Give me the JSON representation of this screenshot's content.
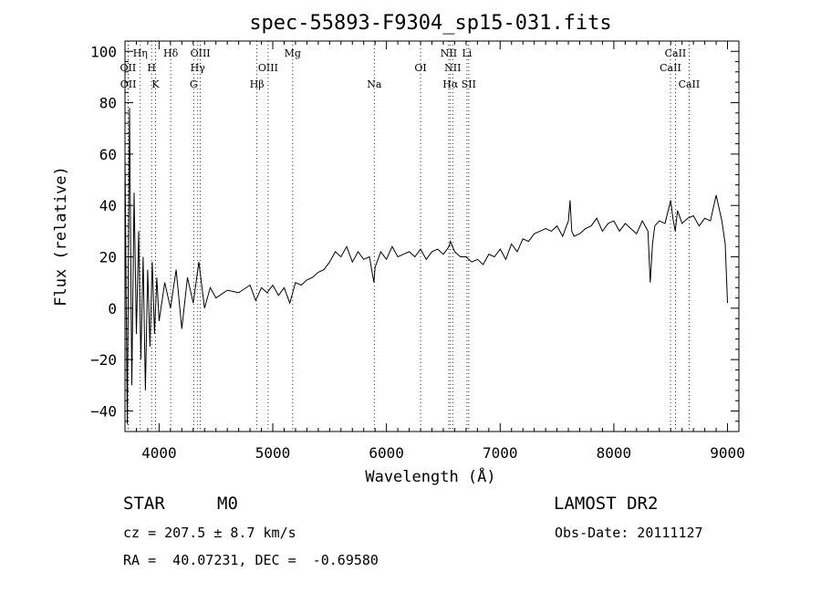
{
  "chart_data": {
    "type": "line",
    "title": "spec-55893-F9304_sp15-031.fits",
    "xlabel": "Wavelength (Å)",
    "ylabel": "Flux (relative)",
    "xlim": [
      3700,
      9100
    ],
    "ylim": [
      -48,
      104
    ],
    "xticks": [
      4000,
      5000,
      6000,
      7000,
      8000,
      9000
    ],
    "yticks": [
      -40,
      -20,
      0,
      20,
      40,
      60,
      80,
      100
    ],
    "ytick_labels": [
      "−40",
      "−20",
      "0",
      "20",
      "40",
      "60",
      "80",
      "100"
    ],
    "grid": false,
    "series": [
      {
        "x": [
          3700,
          3720,
          3740,
          3760,
          3780,
          3800,
          3820,
          3840,
          3860,
          3880,
          3900,
          3920,
          3940,
          3960,
          3980,
          4000,
          4050,
          4100,
          4150,
          4200,
          4250,
          4300,
          4350,
          4400,
          4450,
          4500,
          4600,
          4700,
          4800,
          4850,
          4900,
          4950,
          5000,
          5050,
          5100,
          5150,
          5200,
          5250,
          5300,
          5350,
          5400,
          5450,
          5500,
          5550,
          5600,
          5650,
          5700,
          5750,
          5800,
          5850,
          5890,
          5900,
          5950,
          6000,
          6050,
          6100,
          6150,
          6200,
          6250,
          6300,
          6350,
          6400,
          6450,
          6500,
          6550,
          6563,
          6600,
          6650,
          6700,
          6750,
          6800,
          6850,
          6900,
          6950,
          7000,
          7050,
          7100,
          7150,
          7200,
          7250,
          7300,
          7350,
          7400,
          7450,
          7500,
          7550,
          7600,
          7615,
          7630,
          7650,
          7700,
          7750,
          7800,
          7850,
          7900,
          7950,
          8000,
          8050,
          8100,
          8150,
          8200,
          8250,
          8300,
          8320,
          8340,
          8360,
          8400,
          8450,
          8500,
          8520,
          8540,
          8560,
          8600,
          8650,
          8700,
          8750,
          8800,
          8850,
          8900,
          8950,
          8980,
          9000
        ],
        "y": [
          60,
          -45,
          78,
          -30,
          45,
          -10,
          30,
          -20,
          20,
          -32,
          15,
          -15,
          18,
          -10,
          12,
          -5,
          10,
          0,
          15,
          -8,
          12,
          2,
          18,
          0,
          8,
          4,
          7,
          6,
          9,
          3,
          8,
          6,
          9,
          5,
          8,
          2,
          10,
          9,
          11,
          12,
          14,
          15,
          18,
          22,
          20,
          24,
          18,
          22,
          19,
          20,
          10,
          16,
          22,
          19,
          24,
          20,
          21,
          22,
          20,
          23,
          19,
          22,
          23,
          21,
          24,
          26,
          22,
          20,
          20,
          18,
          19,
          17,
          21,
          20,
          23,
          19,
          25,
          22,
          27,
          26,
          29,
          30,
          31,
          30,
          32,
          28,
          34,
          42,
          30,
          28,
          29,
          31,
          32,
          35,
          30,
          33,
          34,
          30,
          33,
          31,
          29,
          34,
          30,
          10,
          25,
          32,
          34,
          33,
          42,
          35,
          30,
          38,
          33,
          35,
          36,
          32,
          35,
          34,
          44,
          34,
          25,
          2
        ]
      }
    ],
    "lines": [
      {
        "label": "OII",
        "x": 3727,
        "row": 2
      },
      {
        "label": "OII",
        "x": 3729,
        "row": 3
      },
      {
        "label": "Hη",
        "x": 3835,
        "row": 1
      },
      {
        "label": "H",
        "x": 3934,
        "row": 2
      },
      {
        "label": "K",
        "x": 3969,
        "row": 3
      },
      {
        "label": "Hδ",
        "x": 4102,
        "row": 1
      },
      {
        "label": "OIII",
        "x": 4363,
        "row": 1
      },
      {
        "label": "Hγ",
        "x": 4340,
        "row": 2
      },
      {
        "label": "G",
        "x": 4304,
        "row": 3
      },
      {
        "label": "OIII",
        "x": 4959,
        "row": 2
      },
      {
        "label": "Hβ",
        "x": 4861,
        "row": 3
      },
      {
        "label": "Mg",
        "x": 5175,
        "row": 1
      },
      {
        "label": "Na",
        "x": 5893,
        "row": 3
      },
      {
        "label": "OI",
        "x": 6300,
        "row": 2
      },
      {
        "label": "NII",
        "x": 6548,
        "row": 1
      },
      {
        "label": "NII",
        "x": 6583,
        "row": 2
      },
      {
        "label": "Hα",
        "x": 6563,
        "row": 3
      },
      {
        "label": "Li",
        "x": 6708,
        "row": 1
      },
      {
        "label": "SII",
        "x": 6724,
        "row": 3
      },
      {
        "label": "CaII",
        "x": 8542,
        "row": 1
      },
      {
        "label": "CaII",
        "x": 8498,
        "row": 2
      },
      {
        "label": "CaII",
        "x": 8662,
        "row": 3
      }
    ]
  },
  "annotations": {
    "class": "STAR",
    "subclass": "M0",
    "survey": "LAMOST DR2",
    "cz": "cz = 207.5 ± 8.7 km/s",
    "obs_date": "Obs-Date: 20111127",
    "coords": "RA =  40.07231, DEC =  -0.69580"
  }
}
